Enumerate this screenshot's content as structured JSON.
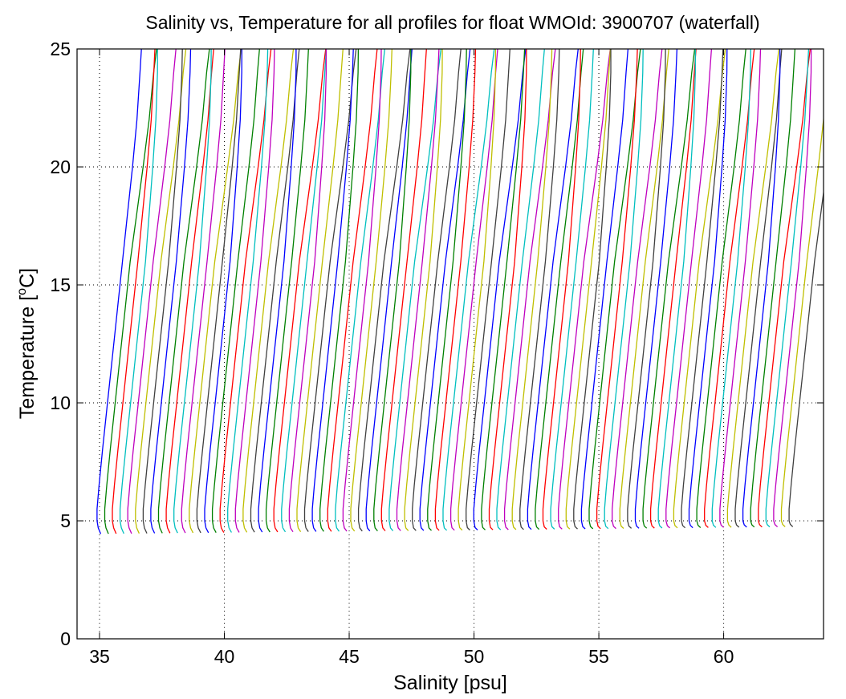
{
  "chart_data": {
    "type": "line",
    "title": "Salinity vs, Temperature for all profiles for float WMOId: 3900707 (waterfall)",
    "xlabel": "Salinity [psu]",
    "ylabel_main": "Temperature [",
    "ylabel_sup": "o",
    "ylabel_end": "C]",
    "xlim": [
      34.1,
      64
    ],
    "ylim": [
      0,
      25
    ],
    "xticks": [
      35,
      40,
      45,
      50,
      55,
      60
    ],
    "yticks": [
      0,
      5,
      10,
      15,
      20,
      25
    ],
    "grid": true,
    "colors": [
      "#0000ff",
      "#008000",
      "#ff0000",
      "#00bfbf",
      "#bf00bf",
      "#bfbf00",
      "#404040"
    ],
    "profile_shape": {
      "temperature": [
        4.5,
        4.7,
        5.0,
        5.5,
        6.5,
        8,
        10,
        12,
        14,
        16,
        18,
        20,
        22,
        24,
        25
      ],
      "salinity_offset": [
        0.15,
        0.05,
        0.0,
        0.0,
        0.08,
        0.22,
        0.42,
        0.62,
        0.82,
        1.02,
        1.22,
        1.42,
        1.6,
        1.72,
        1.78
      ]
    },
    "series": {
      "count": 91,
      "base_salinity_first": 34.9,
      "base_salinity_step": 0.308,
      "min_temperature_first": 4.45,
      "min_temperature_last": 4.75
    }
  }
}
